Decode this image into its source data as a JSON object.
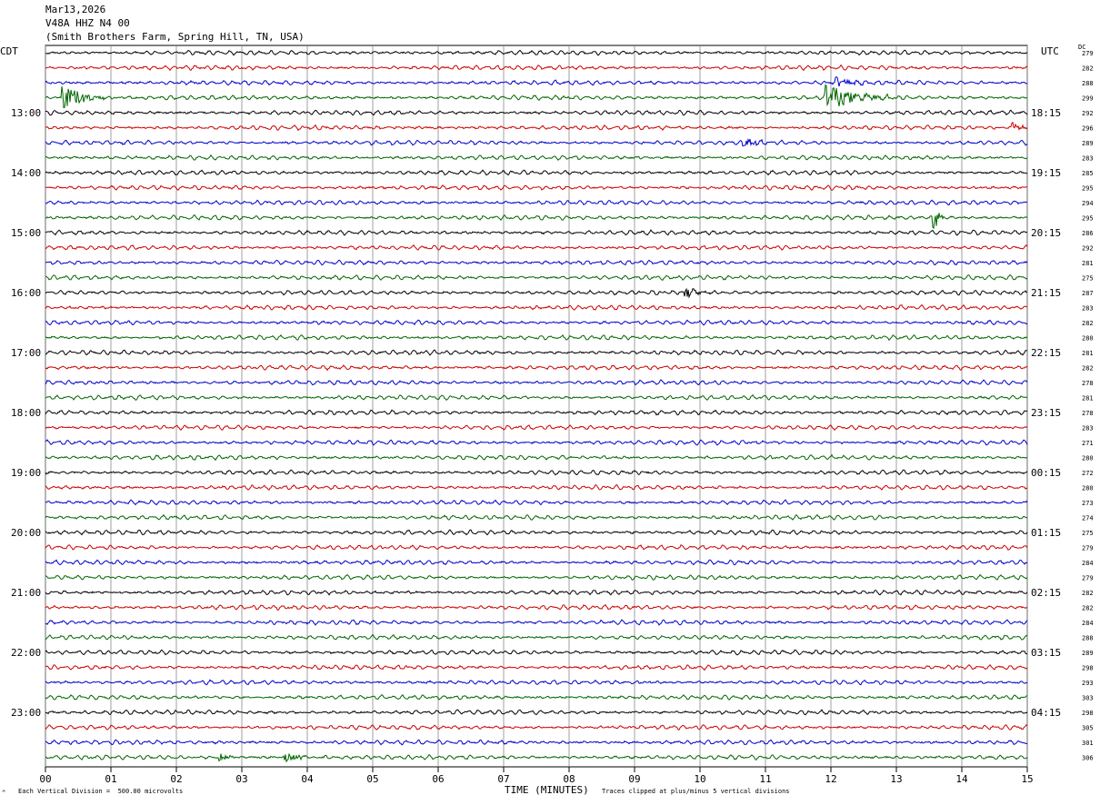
{
  "header": {
    "date": "Mar13,2026",
    "station": "V48A HHZ N4 00",
    "location": "(Smith Brothers Farm, Spring Hill, TN, USA)"
  },
  "axis": {
    "left_tz": "CDT",
    "right_tz": "UTC",
    "dc_label": "DC",
    "xlabel": "TIME (MINUTES)",
    "scale_note": "Each Vertical Division =  500.00 microvolts",
    "clip_note": "Traces clipped at plus/minus 5 vertical divisions",
    "corner_mark": "^"
  },
  "chart_data": {
    "type": "line",
    "title": "V48A HHZ N4 00",
    "xlabel": "TIME (MINUTES)",
    "ylabel": "",
    "xlim": [
      0,
      15
    ],
    "x_ticks": [
      "00",
      "01",
      "02",
      "03",
      "04",
      "05",
      "06",
      "07",
      "08",
      "09",
      "10",
      "11",
      "12",
      "13",
      "14",
      "15"
    ],
    "trace_colors": [
      "#000000",
      "#cc0000",
      "#0000cc",
      "#006600"
    ],
    "left_hour_labels": [
      {
        "row": 4,
        "label": "13:00"
      },
      {
        "row": 8,
        "label": "14:00"
      },
      {
        "row": 12,
        "label": "15:00"
      },
      {
        "row": 16,
        "label": "16:00"
      },
      {
        "row": 20,
        "label": "17:00"
      },
      {
        "row": 24,
        "label": "18:00"
      },
      {
        "row": 28,
        "label": "19:00"
      },
      {
        "row": 32,
        "label": "20:00"
      },
      {
        "row": 36,
        "label": "21:00"
      },
      {
        "row": 40,
        "label": "22:00"
      },
      {
        "row": 44,
        "label": "23:00"
      }
    ],
    "right_hour_labels": [
      {
        "row": 4,
        "label": "18:15"
      },
      {
        "row": 8,
        "label": "19:15"
      },
      {
        "row": 12,
        "label": "20:15"
      },
      {
        "row": 16,
        "label": "21:15"
      },
      {
        "row": 20,
        "label": "22:15"
      },
      {
        "row": 24,
        "label": "23:15"
      },
      {
        "row": 28,
        "label": "00:15"
      },
      {
        "row": 32,
        "label": "01:15"
      },
      {
        "row": 36,
        "label": "02:15"
      },
      {
        "row": 40,
        "label": "03:15"
      },
      {
        "row": 44,
        "label": "04:15"
      }
    ],
    "dc_offsets": [
      "279",
      "282",
      "288",
      "299",
      "292",
      "296",
      "289",
      "283",
      "285",
      "295",
      "294",
      "295",
      "286",
      "292",
      "281",
      "275",
      "287",
      "283",
      "282",
      "280",
      "281",
      "282",
      "278",
      "281",
      "278",
      "283",
      "271",
      "280",
      "272",
      "280",
      "273",
      "274",
      "275",
      "279",
      "284",
      "279",
      "282",
      "282",
      "284",
      "288",
      "289",
      "298",
      "293",
      "303",
      "298",
      "305",
      "301",
      "306"
    ],
    "events": [
      {
        "row": 3,
        "minute": 0.3,
        "amplitude": 3.0,
        "duration": 0.6
      },
      {
        "row": 3,
        "minute": 11.95,
        "amplitude": 3.0,
        "duration": 1.0
      },
      {
        "row": 2,
        "minute": 12.1,
        "amplitude": 1.0,
        "duration": 0.6
      },
      {
        "row": 5,
        "minute": 14.8,
        "amplitude": 1.2,
        "duration": 0.3
      },
      {
        "row": 6,
        "minute": 10.7,
        "amplitude": 1.2,
        "duration": 0.4
      },
      {
        "row": 11,
        "minute": 13.6,
        "amplitude": 2.5,
        "duration": 0.15
      },
      {
        "row": 16,
        "minute": 9.8,
        "amplitude": 1.0,
        "duration": 0.4
      },
      {
        "row": 47,
        "minute": 3.7,
        "amplitude": 1.0,
        "duration": 0.6
      },
      {
        "row": 47,
        "minute": 2.7,
        "amplitude": 0.8,
        "duration": 0.3
      }
    ]
  }
}
